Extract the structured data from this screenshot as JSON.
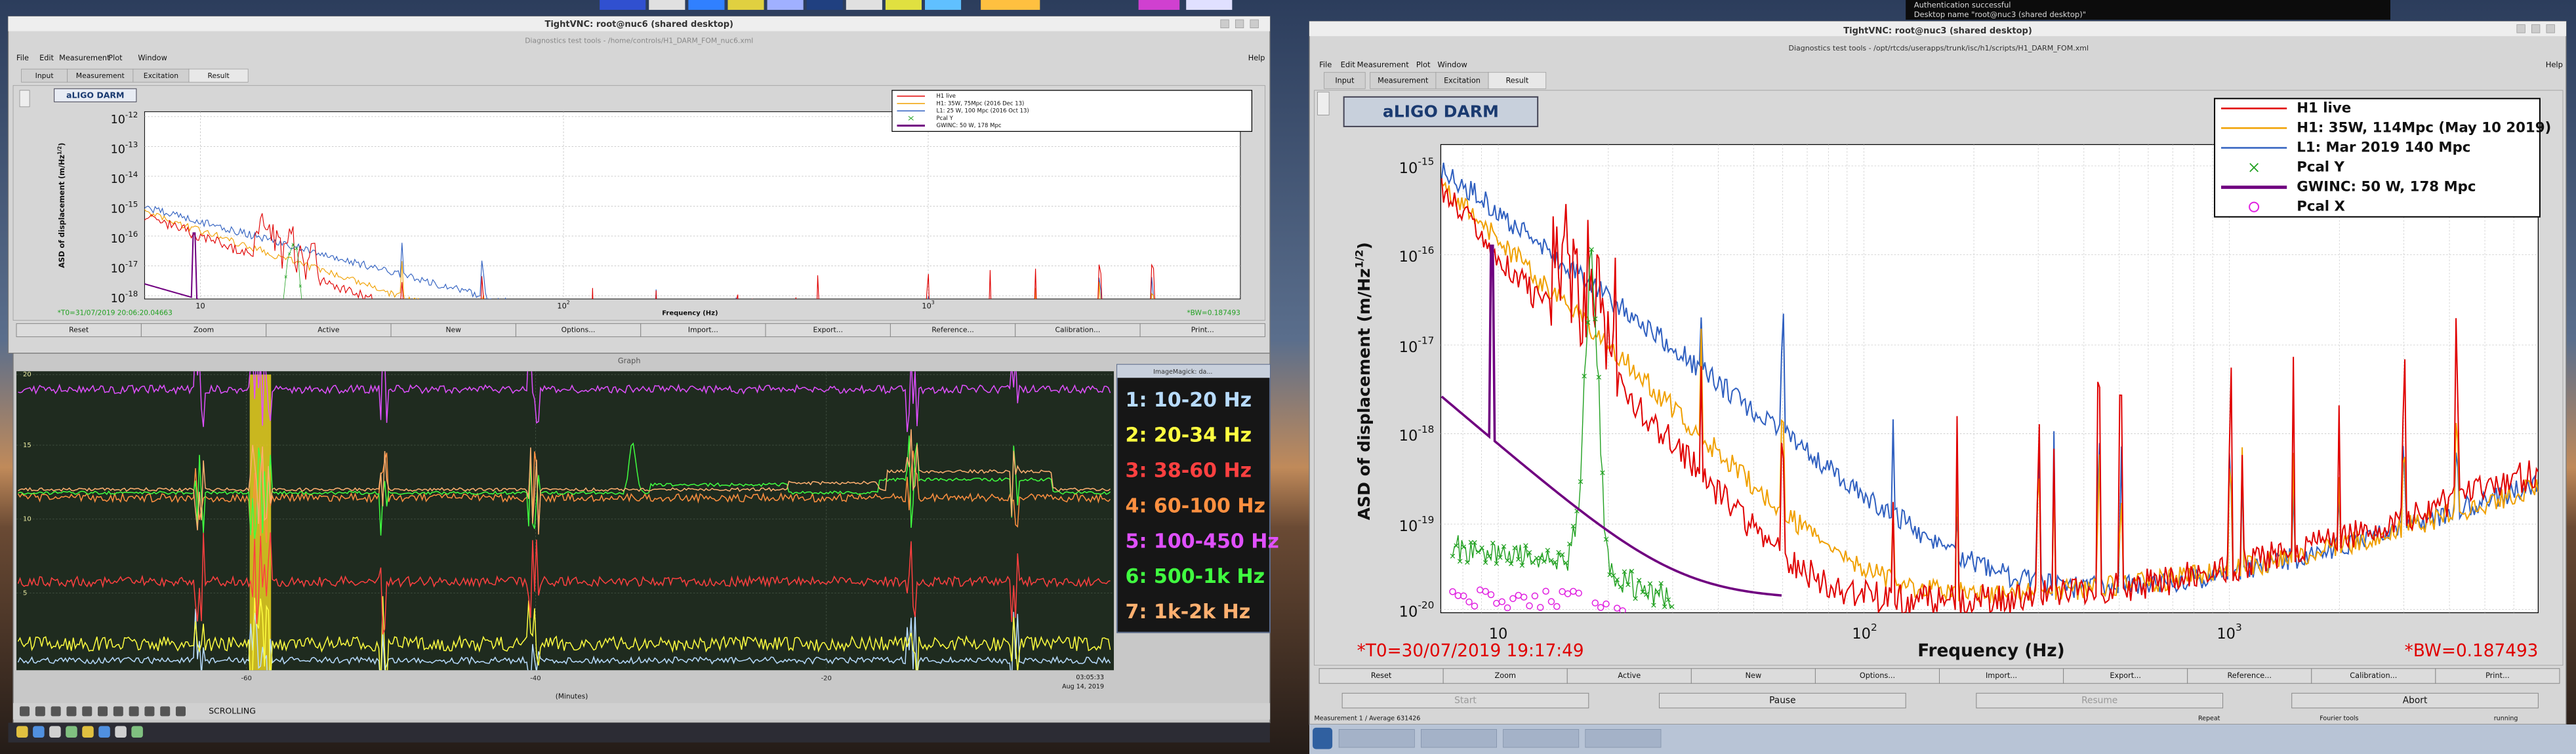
{
  "top_terminal": {
    "lines": [
      "Authentication successful",
      "Desktop name \"root@nuc3 (shared desktop)\""
    ]
  },
  "left_window": {
    "title": "TightVNC: root@nuc6 (shared desktop)",
    "app_title": "Diagnostics test tools - /home/controls/H1_DARM_FOM_nuc6.xml",
    "menu": [
      "File",
      "Edit",
      "Measurement",
      "Plot",
      "Window"
    ],
    "help": "Help",
    "tabs": [
      "Input",
      "Measurement",
      "Excitation",
      "Result"
    ],
    "plot": {
      "label": "aLIGO DARM",
      "legend": [
        {
          "name": "H1 live",
          "color": "#e00000"
        },
        {
          "name": "H1: 35W, 75Mpc (2016 Dec 13)",
          "color": "#f0a000"
        },
        {
          "name": "L1: 25 W, 100 Mpc (2016 Oct 13)",
          "color": "#3060c0"
        },
        {
          "name": "Pcal Y",
          "color": "#20a020"
        },
        {
          "name": "GWINC: 50 W, 178 Mpc",
          "color": "#700080"
        }
      ],
      "ylabel": {
        "text": "ASD of displacement (m/Hz",
        "sup": "1/2",
        "end": ")"
      },
      "yticks": [
        {
          "base": "10",
          "exp": "-12"
        },
        {
          "base": "10",
          "exp": "-13"
        },
        {
          "base": "10",
          "exp": "-14"
        },
        {
          "base": "10",
          "exp": "-15"
        },
        {
          "base": "10",
          "exp": "-16"
        },
        {
          "base": "10",
          "exp": "-17"
        },
        {
          "base": "10",
          "exp": "-18"
        }
      ],
      "xticks": [
        {
          "base": "10"
        },
        {
          "base": "10",
          "exp": "2"
        },
        {
          "base": "10",
          "exp": "3"
        }
      ],
      "xlabel": "Frequency (Hz)",
      "t0": "*T0=31/07/2019 20:06:20.04663",
      "bw": "*BW=0.187493"
    },
    "buttons": [
      "Reset",
      "Zoom",
      "Active",
      "New",
      "Options...",
      "Import...",
      "Export...",
      "Reference...",
      "Calibration...",
      "Print..."
    ]
  },
  "graph_window": {
    "title": "Graph",
    "yticks": [
      "20",
      "15",
      "10",
      "5"
    ],
    "xticks": [
      "-60",
      "-40",
      "-20"
    ],
    "xlabel": "(Minutes)",
    "time": "03:05:33",
    "date": "Aug 14, 2019",
    "status": "SCROLLING"
  },
  "legend_window": {
    "title": "ImageMagick: da...",
    "bands": [
      {
        "label": "1: 10-20 Hz",
        "color": "#b8dcff"
      },
      {
        "label": "2: 20-34 Hz",
        "color": "#ffff40"
      },
      {
        "label": "3: 38-60 Hz",
        "color": "#ff4040"
      },
      {
        "label": "4: 60-100 Hz",
        "color": "#ff9040"
      },
      {
        "label": "5: 100-450 Hz",
        "color": "#e050ff"
      },
      {
        "label": "6: 500-1k Hz",
        "color": "#40ff40"
      },
      {
        "label": "7: 1k-2k Hz",
        "color": "#ffb070"
      }
    ]
  },
  "right_window": {
    "title": "TightVNC: root@nuc3 (shared desktop)",
    "app_title": "Diagnostics test tools - /opt/rtcds/userapps/trunk/isc/h1/scripts/H1_DARM_FOM.xml",
    "menu": [
      "File",
      "Edit",
      "Measurement",
      "Plot",
      "Window"
    ],
    "help": "Help",
    "tabs": [
      "Input",
      "Measurement",
      "Excitation",
      "Result"
    ],
    "plot": {
      "label": "aLIGO DARM",
      "legend": [
        {
          "name": "H1 live",
          "color": "#e00000"
        },
        {
          "name": "H1: 35W, 114Mpc (May 10 2019)",
          "color": "#f0a000"
        },
        {
          "name": "L1: Mar 2019 140 Mpc",
          "color": "#3060c0"
        },
        {
          "name": "Pcal Y",
          "color": "#20a020"
        },
        {
          "name": "GWINC: 50 W, 178 Mpc",
          "color": "#700080"
        },
        {
          "name": "Pcal X",
          "color": "#e020e0"
        }
      ],
      "ylabel": {
        "text": "ASD of displacement (m/Hz",
        "sup": "1/2",
        "end": ")"
      },
      "yticks": [
        {
          "base": "10",
          "exp": "-15"
        },
        {
          "base": "10",
          "exp": "-16"
        },
        {
          "base": "10",
          "exp": "-17"
        },
        {
          "base": "10",
          "exp": "-18"
        },
        {
          "base": "10",
          "exp": "-19"
        },
        {
          "base": "10",
          "exp": "-20"
        }
      ],
      "xticks": [
        {
          "base": "10"
        },
        {
          "base": "10",
          "exp": "2"
        },
        {
          "base": "10",
          "exp": "3"
        }
      ],
      "xlabel": "Frequency (Hz)",
      "t0": "*T0=30/07/2019 19:17:49",
      "bw": "*BW=0.187493"
    },
    "buttons": [
      "Reset",
      "Zoom",
      "Active",
      "New",
      "Options...",
      "Import...",
      "Export...",
      "Reference...",
      "Calibration...",
      "Print..."
    ],
    "controls": [
      "Start",
      "Pause",
      "Resume",
      "Abort"
    ],
    "status": [
      "Measurement 1 / Average 631426",
      "Repeat",
      "Fourier tools",
      "running"
    ]
  }
}
